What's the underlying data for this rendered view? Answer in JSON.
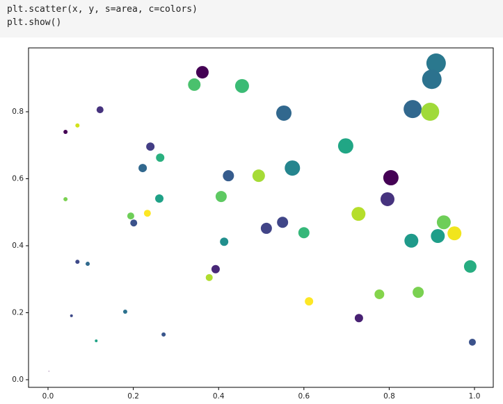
{
  "code": [
    "plt.scatter(x, y, s=area, c=colors)",
    "plt.show()"
  ],
  "chart_data": {
    "type": "scatter",
    "x": [
      0.91,
      0.9,
      0.362,
      0.343,
      0.455,
      0.122,
      0.553,
      0.855,
      0.896,
      0.041,
      0.069,
      0.24,
      0.698,
      0.263,
      0.222,
      0.573,
      0.423,
      0.494,
      0.804,
      0.041,
      0.261,
      0.406,
      0.796,
      0.233,
      0.194,
      0.201,
      0.728,
      0.928,
      0.55,
      0.512,
      0.6,
      0.852,
      0.914,
      0.953,
      0.413,
      0.069,
      0.093,
      0.99,
      0.393,
      0.378,
      0.777,
      0.868,
      0.612,
      0.729,
      0.181,
      0.055,
      0.113,
      0.271,
      0.995,
      0.002
    ],
    "values": [
      0.945,
      0.897,
      0.918,
      0.881,
      0.877,
      0.806,
      0.796,
      0.808,
      0.8,
      0.74,
      0.759,
      0.696,
      0.698,
      0.663,
      0.632,
      0.632,
      0.609,
      0.609,
      0.603,
      0.539,
      0.541,
      0.547,
      0.539,
      0.497,
      0.489,
      0.468,
      0.495,
      0.47,
      0.47,
      0.452,
      0.439,
      0.415,
      0.429,
      0.437,
      0.412,
      0.352,
      0.346,
      0.338,
      0.33,
      0.305,
      0.255,
      0.261,
      0.234,
      0.184,
      0.203,
      0.191,
      0.116,
      0.135,
      0.112,
      0.025
    ],
    "sizes": [
      784,
      784,
      324,
      324,
      400,
      100,
      484,
      676,
      676,
      36,
      36,
      144,
      484,
      144,
      144,
      484,
      256,
      324,
      484,
      36,
      144,
      256,
      400,
      100,
      100,
      100,
      400,
      400,
      256,
      256,
      256,
      400,
      400,
      400,
      144,
      36,
      36,
      324,
      144,
      100,
      196,
      256,
      144,
      144,
      36,
      16,
      16,
      36,
      100,
      1
    ],
    "colors": [
      "#2a788e",
      "#2c728e",
      "#440154",
      "#4ac16d",
      "#3bbb75",
      "#46337e",
      "#31688e",
      "#31688e",
      "#a0da39",
      "#440154",
      "#d2e21b",
      "#433e85",
      "#21a685",
      "#2ab07f",
      "#31688e",
      "#25858e",
      "#365c8d",
      "#a5db36",
      "#440154",
      "#7ad151",
      "#1fa187",
      "#5ec962",
      "#46337e",
      "#fde725",
      "#6ece58",
      "#3b528b",
      "#b5de2b",
      "#6ece58",
      "#404688",
      "#414487",
      "#35b779",
      "#1f9a8a",
      "#1f9e89",
      "#f1e51d",
      "#218f8d",
      "#3e4989",
      "#306a8e",
      "#27ad81",
      "#482878",
      "#b0dd2f",
      "#84d44b",
      "#7ad151",
      "#fde725",
      "#482173",
      "#2c728e",
      "#3e4a89",
      "#20a386",
      "#39568c",
      "#3b528b",
      "#440154"
    ],
    "xlim": [
      -0.0457,
      1.044
    ],
    "ylim": [
      -0.0228,
      0.9907
    ],
    "xticks": [
      {
        "value": 0,
        "label": "0.0"
      },
      {
        "value": 0.2,
        "label": "0.2"
      },
      {
        "value": 0.4,
        "label": "0.4"
      },
      {
        "value": 0.6,
        "label": "0.6"
      },
      {
        "value": 0.8,
        "label": "0.8"
      },
      {
        "value": 1,
        "label": "1.0"
      }
    ],
    "yticks": [
      {
        "value": 0,
        "label": "0.0"
      },
      {
        "value": 0.2,
        "label": "0.2"
      },
      {
        "value": 0.4,
        "label": "0.4"
      },
      {
        "value": 0.6,
        "label": "0.6"
      },
      {
        "value": 0.8,
        "label": "0.8"
      }
    ]
  }
}
